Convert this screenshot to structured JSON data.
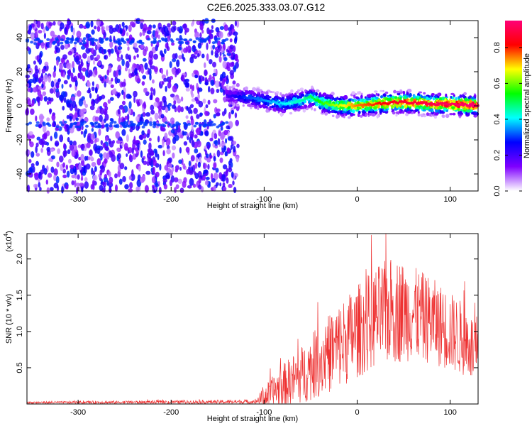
{
  "title": "C2E6.2025.333.03.07.G12",
  "chart_data": [
    {
      "type": "heatmap",
      "name": "spectrogram",
      "xlabel": "Height of straight line (km)",
      "ylabel": "Frequency (Hz)",
      "xlim": [
        -355,
        130
      ],
      "ylim": [
        -50,
        50
      ],
      "xticks": [
        -300,
        -200,
        -100,
        0,
        100
      ],
      "yticks": [
        -40,
        -20,
        0,
        20,
        40
      ],
      "colorbar": {
        "label": "Normalized spectral amplitude",
        "range": [
          0.0,
          0.95
        ],
        "ticks": [
          0.0,
          0.2,
          0.4,
          0.6,
          0.8
        ],
        "colors": [
          "#ffffff",
          "#7f00ff",
          "#0000ff",
          "#00ffff",
          "#00ff00",
          "#ffff00",
          "#ff0000",
          "#ff0077"
        ]
      },
      "noise_region": {
        "x_range": [
          -355,
          -140
        ],
        "y_range": [
          -50,
          50
        ],
        "amplitude_range": [
          0.05,
          0.3
        ]
      },
      "signal_ridge": {
        "x": [
          -140,
          -120,
          -100,
          -80,
          -60,
          -50,
          -40,
          -30,
          -20,
          -10,
          0,
          20,
          40,
          60,
          80,
          100,
          130
        ],
        "freq": [
          6,
          5,
          3,
          1,
          3,
          5,
          2,
          1,
          0,
          0,
          0,
          1,
          2,
          2,
          1,
          1,
          0
        ],
        "amplitude": [
          0.2,
          0.3,
          0.35,
          0.4,
          0.45,
          0.5,
          0.55,
          0.6,
          0.65,
          0.7,
          0.75,
          0.8,
          0.85,
          0.88,
          0.9,
          0.92,
          0.95
        ]
      }
    },
    {
      "type": "line",
      "name": "snr",
      "xlabel": "Height of straight line (km)",
      "ylabel": "SNR (10 * v/v)",
      "scale_label": "(x10",
      "scale_exp": "4",
      "color": "#ee3333",
      "xlim": [
        -355,
        130
      ],
      "ylim": [
        0,
        23500
      ],
      "xticks": [
        -300,
        -200,
        -100,
        0,
        100
      ],
      "yticks": [
        5000,
        10000,
        15000,
        20000
      ],
      "ytick_labels": [
        "0.5",
        "1.0",
        "1.5",
        "2.0"
      ],
      "envelope": {
        "x": [
          -355,
          -110,
          -100,
          -80,
          -60,
          -40,
          -20,
          0,
          20,
          40,
          60,
          80,
          100,
          120,
          130
        ],
        "mean": [
          200,
          300,
          900,
          2500,
          4000,
          6000,
          8000,
          10000,
          12000,
          13000,
          12500,
          11500,
          10000,
          8500,
          6000
        ],
        "spread": [
          150,
          300,
          1500,
          3000,
          4000,
          5000,
          6000,
          6500,
          7000,
          7500,
          6500,
          6000,
          5500,
          5000,
          4500
        ]
      }
    }
  ]
}
